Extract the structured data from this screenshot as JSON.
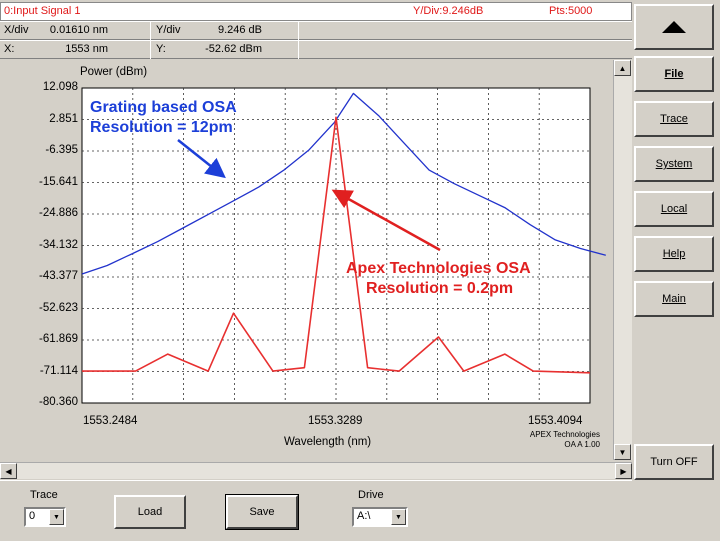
{
  "header": {
    "signal_label": "0:Input Signal 1",
    "ydiv_label": "Y/Div:9.246dB",
    "pts_label": "Pts:5000"
  },
  "readout": {
    "xdiv_label": "X/div",
    "xdiv_value": "0.01610 nm",
    "ydiv_label": "Y/div",
    "ydiv_value": "9.246 dB",
    "x_label": "X:",
    "x_value": "1553 nm",
    "y_label": "Y:",
    "y_value": "-52.62 dBm"
  },
  "chart_data": {
    "type": "line",
    "ylabel": "Power (dBm)",
    "xlabel": "Wavelength (nm)",
    "y_ticks": [
      "12.098",
      "2.851",
      "-6.395",
      "-15.641",
      "-24.886",
      "-34.132",
      "-43.377",
      "-52.623",
      "-61.869",
      "-71.114",
      "-80.360"
    ],
    "x_ticks": [
      "1553.2484",
      "1553.3289",
      "1553.4094"
    ],
    "ylim": [
      -80.36,
      12.098
    ],
    "xlim": [
      1553.2484,
      1553.4094
    ],
    "grid": true,
    "vendor_line1": "APEX Technologies",
    "vendor_line2": "OA A 1.00",
    "annotations": [
      {
        "text_line1": "Grating based OSA",
        "text_line2": "Resolution =  12pm",
        "color": "#1c3fd8"
      },
      {
        "text_line1": "Apex Technologies OSA",
        "text_line2": "Resolution =  0.2pm",
        "color": "#e02020"
      }
    ],
    "series": [
      {
        "color": "#2233cc",
        "x": [
          1553.2484,
          1553.2564,
          1553.2644,
          1553.2724,
          1553.2804,
          1553.2884,
          1553.2964,
          1553.3044,
          1553.3124,
          1553.3204,
          1553.3284,
          1553.3344,
          1553.3424,
          1553.3504,
          1553.3584,
          1553.3664,
          1553.3744,
          1553.3824,
          1553.3904,
          1553.3984,
          1553.4064,
          1553.4144
        ],
        "y": [
          -42.5,
          -40.0,
          -36.5,
          -33.0,
          -29.0,
          -25.0,
          -21.0,
          -17.0,
          -12.0,
          -6.0,
          2.0,
          10.5,
          4.0,
          -4.0,
          -12.0,
          -16.0,
          -19.5,
          -23.0,
          -28.0,
          -32.5,
          -35.0,
          -37.0
        ]
      },
      {
        "color": "#e83030",
        "x": [
          1553.2484,
          1553.2654,
          1553.2756,
          1553.2884,
          1553.2964,
          1553.3089,
          1553.3189,
          1553.3289,
          1553.3389,
          1553.3489,
          1553.3614,
          1553.3694,
          1553.3824,
          1553.3914,
          1553.4094
        ],
        "y": [
          -71.0,
          -71.0,
          -66.0,
          -71.0,
          -54.0,
          -71.0,
          -70.0,
          3.5,
          -70.0,
          -71.0,
          -61.0,
          -71.0,
          -66.0,
          -71.0,
          -71.5
        ]
      }
    ]
  },
  "sidebar": {
    "buttons": [
      "File",
      "Trace",
      "System",
      "Local",
      "Help",
      "Main"
    ],
    "turn_off": "Turn OFF"
  },
  "bottom": {
    "trace_label": "Trace",
    "trace_value": "0",
    "load_label": "Load",
    "save_label": "Save",
    "drive_label": "Drive",
    "drive_value": "A:\\"
  }
}
